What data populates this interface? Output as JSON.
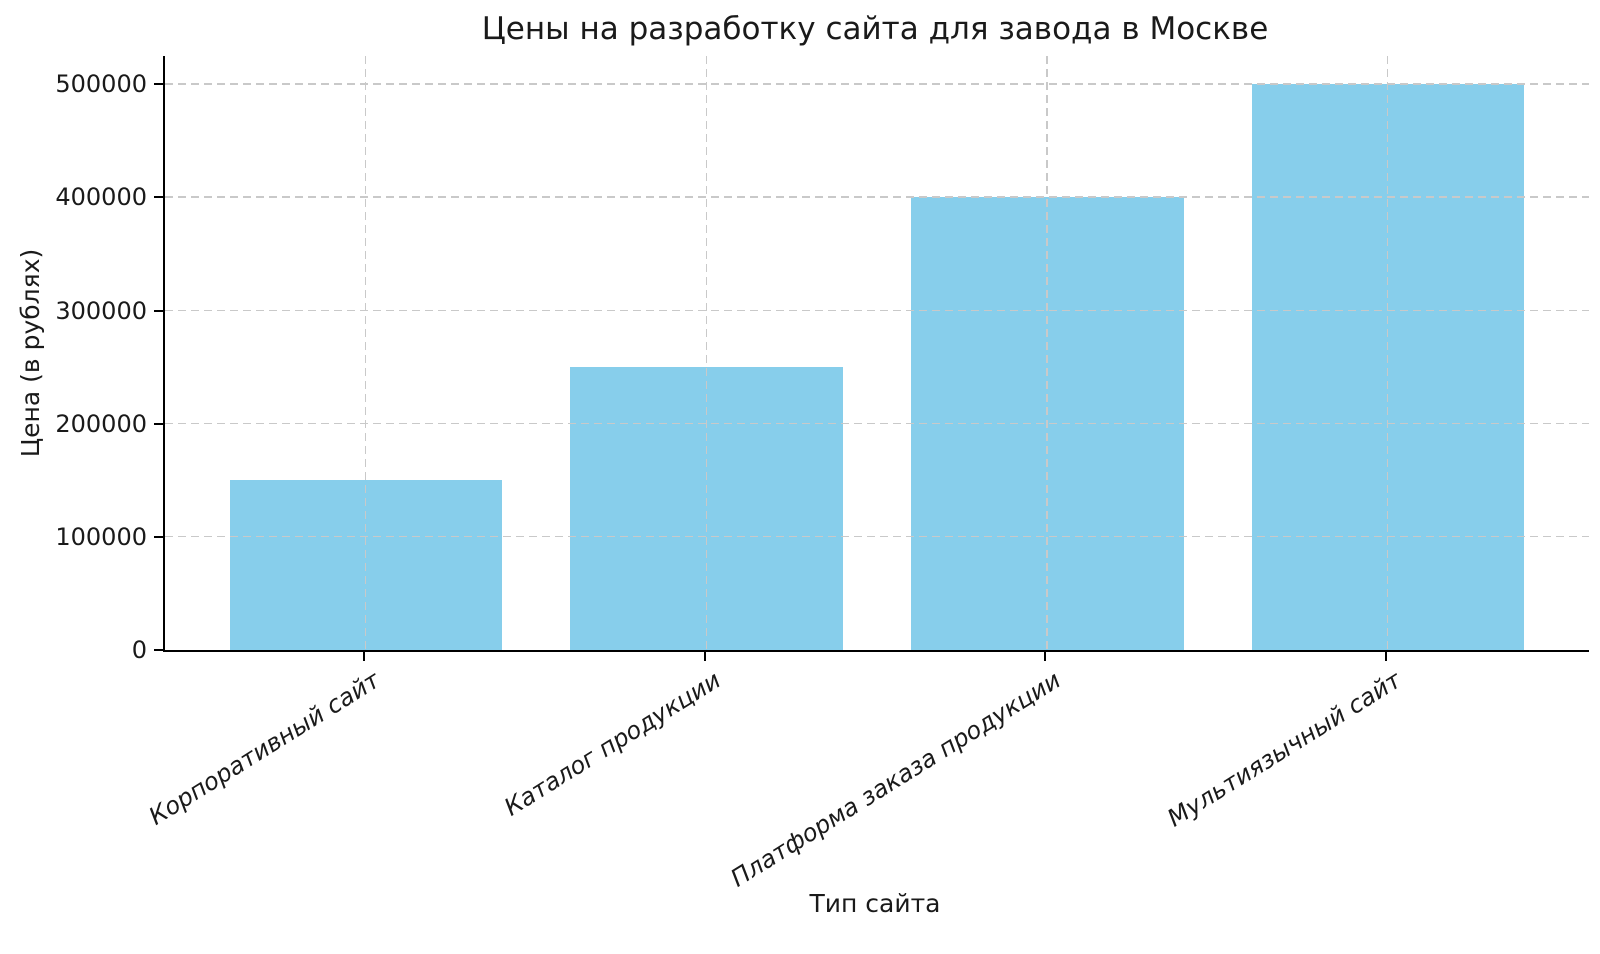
{
  "chart_data": {
    "type": "bar",
    "title": "Цены на разработку сайта для завода в Москве",
    "xlabel": "Тип сайта",
    "ylabel": "Цена (в рублях)",
    "categories": [
      "Корпоративный сайт",
      "Каталог продукции",
      "Платформа заказа продукции",
      "Мультиязычный сайт"
    ],
    "values": [
      150000,
      250000,
      400000,
      500000
    ],
    "yticks": [
      0,
      100000,
      200000,
      300000,
      400000,
      500000
    ],
    "ytick_labels": [
      "0",
      "100000",
      "200000",
      "300000",
      "400000",
      "500000"
    ],
    "ylim": [
      0,
      525000
    ],
    "bar_color": "#87CEEB",
    "grid": true,
    "grid_line_style": "dashed",
    "grid_color": "#c9c9c9",
    "grid_above_bars": true,
    "axis_color": "#000000",
    "text_color": "#1a1a1a",
    "legend_position": "none"
  }
}
